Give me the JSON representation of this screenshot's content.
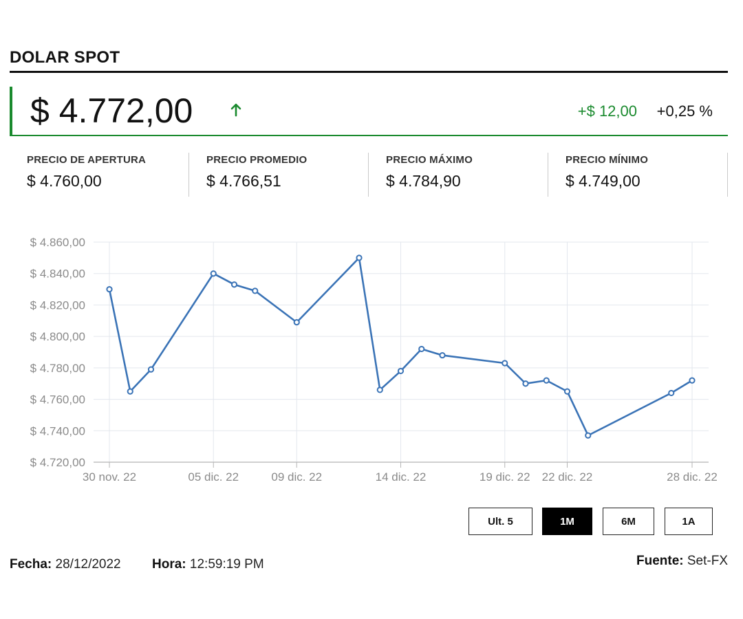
{
  "header": {
    "title": "DOLAR SPOT"
  },
  "price": {
    "current": "$ 4.772,00",
    "change_abs": "+$ 12,00",
    "change_pct": "+0,25 %",
    "direction": "up",
    "up_color": "#1a8a2e"
  },
  "stats": [
    {
      "label": "PRECIO DE APERTURA",
      "value": "$ 4.760,00"
    },
    {
      "label": "PRECIO PROMEDIO",
      "value": "$ 4.766,51"
    },
    {
      "label": "PRECIO MÁXIMO",
      "value": "$ 4.784,90"
    },
    {
      "label": "PRECIO MÍNIMO",
      "value": "$ 4.749,00"
    }
  ],
  "chart_data": {
    "type": "line",
    "title": "",
    "xlabel": "",
    "ylabel": "",
    "ylim": [
      4720,
      4860
    ],
    "y_ticks": [
      4720,
      4740,
      4760,
      4780,
      4800,
      4820,
      4840,
      4860
    ],
    "y_tick_labels": [
      "$ 4.720,00",
      "$ 4.740,00",
      "$ 4.760,00",
      "$ 4.780,00",
      "$ 4.800,00",
      "$ 4.820,00",
      "$ 4.840,00",
      "$ 4.860,00"
    ],
    "x_tick_labels": [
      "30 nov. 22",
      "05 dic. 22",
      "09 dic. 22",
      "14 dic. 22",
      "19 dic. 22",
      "22 dic. 22",
      "28 dic. 22"
    ],
    "x": [
      "2022-11-30",
      "2022-12-01",
      "2022-12-02",
      "2022-12-05",
      "2022-12-06",
      "2022-12-07",
      "2022-12-09",
      "2022-12-12",
      "2022-12-13",
      "2022-12-14",
      "2022-12-15",
      "2022-12-16",
      "2022-12-19",
      "2022-12-20",
      "2022-12-21",
      "2022-12-22",
      "2022-12-23",
      "2022-12-27",
      "2022-12-28"
    ],
    "series": [
      {
        "values": [
          4830,
          4765,
          4779,
          4840,
          4833,
          4829,
          4809,
          4850,
          4766,
          4778,
          4792,
          4788,
          4783,
          4770,
          4772,
          4765,
          4737,
          4764,
          4772
        ]
      }
    ],
    "grid": true,
    "legend": "none",
    "line_color": "#3a73b6"
  },
  "ranges": {
    "buttons": [
      {
        "label": "Ult. 5",
        "active": false
      },
      {
        "label": "1M",
        "active": true
      },
      {
        "label": "6M",
        "active": false
      },
      {
        "label": "1A",
        "active": false
      }
    ]
  },
  "footer": {
    "fecha_label": "Fecha:",
    "fecha_value": "28/12/2022",
    "hora_label": "Hora:",
    "hora_value": "12:59:19 PM",
    "fuente_label": "Fuente:",
    "fuente_value": "Set-FX"
  }
}
